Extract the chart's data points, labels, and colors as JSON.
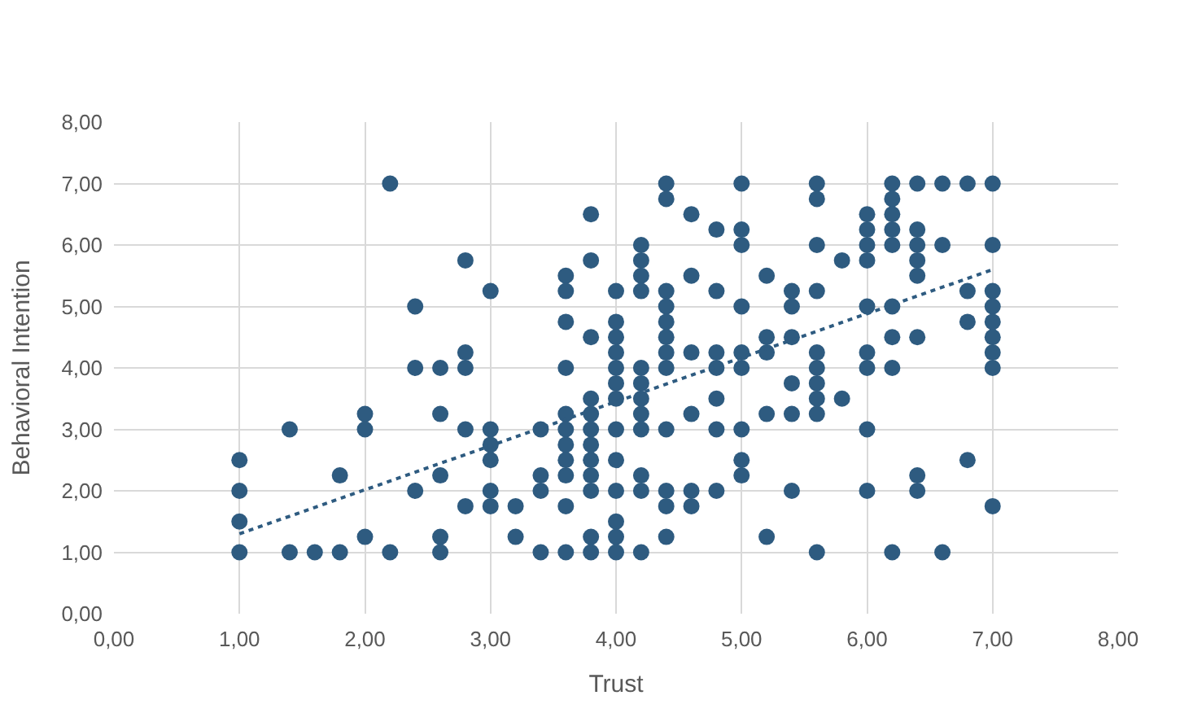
{
  "chart_data": {
    "type": "scatter",
    "xlabel": "Trust",
    "ylabel": "Behavioral Intention",
    "xlim": [
      0,
      8
    ],
    "ylim": [
      0,
      8
    ],
    "xticks": [
      {
        "value": 0,
        "label": "0,00"
      },
      {
        "value": 1,
        "label": "1,00"
      },
      {
        "value": 2,
        "label": "2,00"
      },
      {
        "value": 3,
        "label": "3,00"
      },
      {
        "value": 4,
        "label": "4,00"
      },
      {
        "value": 5,
        "label": "5,00"
      },
      {
        "value": 6,
        "label": "6,00"
      },
      {
        "value": 7,
        "label": "7,00"
      },
      {
        "value": 8,
        "label": "8,00"
      }
    ],
    "yticks": [
      {
        "value": 0,
        "label": "0,00"
      },
      {
        "value": 1,
        "label": "1,00"
      },
      {
        "value": 2,
        "label": "2,00"
      },
      {
        "value": 3,
        "label": "3,00"
      },
      {
        "value": 4,
        "label": "4,00"
      },
      {
        "value": 5,
        "label": "5,00"
      },
      {
        "value": 6,
        "label": "6,00"
      },
      {
        "value": 7,
        "label": "7,00"
      },
      {
        "value": 8,
        "label": "8,00"
      }
    ],
    "grid": true,
    "marker": "circle",
    "series": [
      {
        "type": "scatter",
        "color": "#2e5b80",
        "x": [
          1,
          1,
          1,
          1,
          1.4,
          1.4,
          1.6,
          1.8,
          1.8,
          2,
          2,
          2,
          2.2,
          2.2,
          2.4,
          2.4,
          2.4,
          2.6,
          2.6,
          2.6,
          2.6,
          2.6,
          2.8,
          2.8,
          2.8,
          2.8,
          2.8,
          3,
          3,
          3,
          3,
          3,
          3,
          3.2,
          3.2,
          3.4,
          3.4,
          3.4,
          3.4,
          3.6,
          3.6,
          3.6,
          3.6,
          3.6,
          3.6,
          3.6,
          3.6,
          3.6,
          3.6,
          3.6,
          3.8,
          3.8,
          3.8,
          3.8,
          3.8,
          3.8,
          3.8,
          3.8,
          3.8,
          3.8,
          3.8,
          3.8,
          4,
          4,
          4,
          4,
          4,
          4,
          4,
          4,
          4,
          4,
          4,
          4,
          4,
          4.2,
          4.2,
          4.2,
          4.2,
          4.2,
          4.2,
          4.2,
          4.2,
          4.2,
          4.2,
          4.2,
          4.2,
          4.4,
          4.4,
          4.4,
          4.4,
          4.4,
          4.4,
          4.4,
          4.4,
          4.4,
          4.4,
          4.4,
          4.4,
          4.6,
          4.6,
          4.6,
          4.6,
          4.6,
          4.6,
          4.8,
          4.8,
          4.8,
          4.8,
          4.8,
          4.8,
          4.8,
          5,
          5,
          5,
          5,
          5,
          5,
          5,
          5,
          5,
          5.2,
          5.2,
          5.2,
          5.2,
          5.2,
          5.4,
          5.4,
          5.4,
          5.4,
          5.4,
          5.4,
          5.6,
          5.6,
          5.6,
          5.6,
          5.6,
          5.6,
          5.6,
          5.6,
          5.6,
          5.6,
          5.8,
          5.8,
          6,
          6,
          6,
          6,
          6,
          6,
          6,
          6,
          6,
          6.2,
          6.2,
          6.2,
          6.2,
          6.2,
          6.2,
          6.2,
          6.2,
          6.2,
          6.4,
          6.4,
          6.4,
          6.4,
          6.4,
          6.4,
          6.4,
          6.4,
          6.6,
          6.6,
          6.6,
          6.8,
          6.8,
          6.8,
          6.8,
          7,
          7,
          7,
          7,
          7,
          7,
          7,
          7,
          7
        ],
        "values": [
          1,
          1.5,
          2,
          2.5,
          3,
          1,
          1,
          1,
          2.25,
          3,
          3.25,
          1.25,
          7,
          1,
          5,
          4,
          2,
          4,
          3.25,
          2.25,
          1.25,
          1,
          5.75,
          4.25,
          4,
          3,
          1.75,
          5.25,
          3,
          2.75,
          2.5,
          2,
          1.75,
          1.75,
          1.25,
          3,
          2.25,
          2,
          1,
          5.5,
          5.25,
          4.75,
          4,
          3.25,
          3,
          2.75,
          2.5,
          2.25,
          1.75,
          1,
          6.5,
          5.75,
          4.5,
          3.5,
          3.25,
          3,
          2.75,
          2.5,
          2.25,
          2,
          1.25,
          1,
          5.25,
          4.75,
          4.5,
          4.25,
          4,
          3.75,
          3.5,
          3,
          2.5,
          2,
          1.5,
          1.25,
          1,
          6,
          5.75,
          5.5,
          5.25,
          4,
          3.75,
          3.5,
          3.25,
          3,
          2.25,
          2,
          1,
          7,
          6.75,
          5.25,
          5,
          4.75,
          4.5,
          4.25,
          4,
          3,
          2,
          1.75,
          1.25,
          6.5,
          5.5,
          4.25,
          3.25,
          2,
          1.75,
          6.25,
          5.25,
          4.25,
          4,
          3.5,
          3,
          2,
          7,
          6.25,
          6,
          5,
          4.25,
          4,
          3,
          2.5,
          2.25,
          5.5,
          4.5,
          4.25,
          3.25,
          1.25,
          5.25,
          5,
          4.5,
          3.75,
          3.25,
          2,
          7,
          6.75,
          6,
          5.25,
          4.25,
          4,
          3.75,
          3.5,
          3.25,
          1,
          5.75,
          3.5,
          6.5,
          6.25,
          6,
          5.75,
          5,
          4.25,
          4,
          3,
          2,
          7,
          6.75,
          6.5,
          6.25,
          6,
          5,
          4.5,
          4,
          1,
          7,
          6.25,
          6,
          5.75,
          5.5,
          4.5,
          2.25,
          2,
          7,
          6,
          1,
          7,
          5.25,
          4.75,
          2.5,
          7,
          6,
          5.25,
          5,
          4.75,
          4.5,
          4.25,
          4,
          1.75
        ]
      },
      {
        "type": "line",
        "color": "#2e5b80",
        "line_style": "dotted",
        "marker": "none",
        "x": [
          1,
          7
        ],
        "values": [
          1.3,
          5.6
        ]
      }
    ]
  }
}
